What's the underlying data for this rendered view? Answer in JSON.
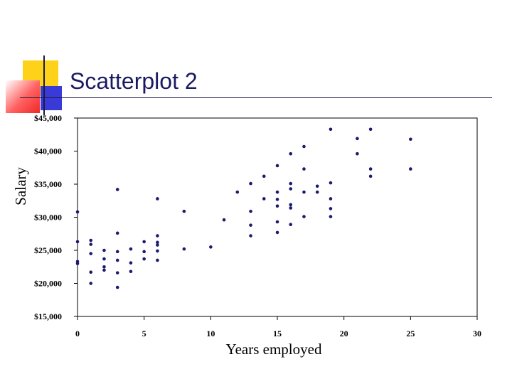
{
  "slide": {
    "title": "Scatterplot 2"
  },
  "chart_data": {
    "type": "scatter",
    "xlabel": "Years employed",
    "ylabel": "Salary",
    "xlim": [
      0,
      30
    ],
    "ylim": [
      15000,
      45000
    ],
    "xticks": [
      0,
      5,
      10,
      15,
      20,
      25,
      30
    ],
    "xtick_labels": [
      "0",
      "5",
      "10",
      "15",
      "20",
      "25",
      "30"
    ],
    "yticks": [
      15000,
      20000,
      25000,
      30000,
      35000,
      40000,
      45000
    ],
    "ytick_labels": [
      "$15,000",
      "$20,000",
      "$25,000",
      "$30,000",
      "$35,000",
      "$40,000",
      "$45,000"
    ],
    "grid": false,
    "marker_color": "#1a1a6e",
    "points": [
      [
        0,
        30800
      ],
      [
        0,
        26300
      ],
      [
        0,
        23300
      ],
      [
        0,
        23000
      ],
      [
        1,
        26500
      ],
      [
        1,
        25900
      ],
      [
        1,
        24500
      ],
      [
        1,
        21700
      ],
      [
        1,
        20000
      ],
      [
        2,
        25000
      ],
      [
        2,
        23700
      ],
      [
        2,
        22500
      ],
      [
        2,
        22000
      ],
      [
        3,
        34200
      ],
      [
        3,
        27600
      ],
      [
        3,
        24800
      ],
      [
        3,
        23500
      ],
      [
        3,
        21600
      ],
      [
        3,
        19400
      ],
      [
        4,
        25200
      ],
      [
        4,
        23100
      ],
      [
        4,
        21800
      ],
      [
        5,
        26300
      ],
      [
        5,
        24800
      ],
      [
        5,
        23700
      ],
      [
        6,
        32800
      ],
      [
        6,
        27200
      ],
      [
        6,
        26200
      ],
      [
        6,
        25800
      ],
      [
        6,
        24900
      ],
      [
        6,
        23500
      ],
      [
        8,
        30900
      ],
      [
        8,
        25200
      ],
      [
        10,
        25500
      ],
      [
        11,
        29600
      ],
      [
        12,
        33800
      ],
      [
        13,
        35100
      ],
      [
        13,
        30900
      ],
      [
        13,
        28800
      ],
      [
        13,
        27200
      ],
      [
        14,
        36200
      ],
      [
        14,
        32800
      ],
      [
        15,
        37800
      ],
      [
        15,
        33800
      ],
      [
        15,
        32700
      ],
      [
        15,
        31700
      ],
      [
        15,
        29300
      ],
      [
        15,
        27700
      ],
      [
        16,
        39600
      ],
      [
        16,
        35100
      ],
      [
        16,
        34300
      ],
      [
        16,
        31900
      ],
      [
        16,
        31400
      ],
      [
        16,
        28900
      ],
      [
        17,
        40700
      ],
      [
        17,
        37300
      ],
      [
        17,
        33800
      ],
      [
        17,
        30100
      ],
      [
        18,
        34700
      ],
      [
        18,
        33800
      ],
      [
        19,
        43300
      ],
      [
        19,
        35200
      ],
      [
        19,
        32800
      ],
      [
        19,
        31300
      ],
      [
        19,
        30100
      ],
      [
        21,
        41900
      ],
      [
        21,
        39600
      ],
      [
        22,
        43300
      ],
      [
        22,
        37300
      ],
      [
        22,
        36200
      ],
      [
        25,
        41800
      ],
      [
        25,
        37300
      ]
    ]
  }
}
